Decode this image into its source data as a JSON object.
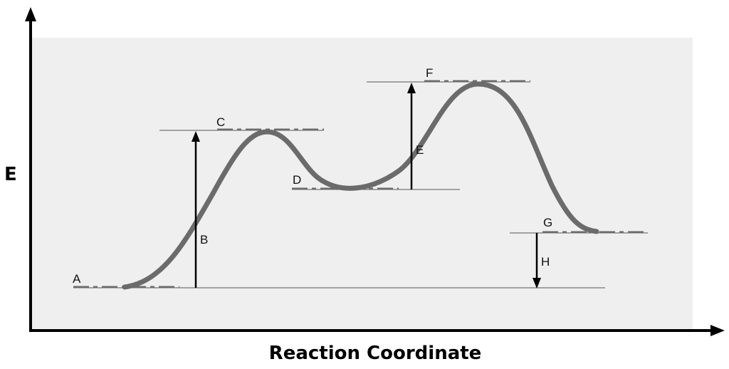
{
  "axes": {
    "y_label": "E",
    "x_label": "Reaction Coordinate"
  },
  "levels": {
    "A": "A",
    "C": "C",
    "D": "D",
    "F": "F",
    "G": "G"
  },
  "arrows": {
    "B": "B",
    "E": "E",
    "H": "H"
  },
  "colors": {
    "panel": "#efefef",
    "curve": "#6b6b6b",
    "dash": "#6b6b6b",
    "axis": "#000000",
    "guide": "#555555"
  }
}
